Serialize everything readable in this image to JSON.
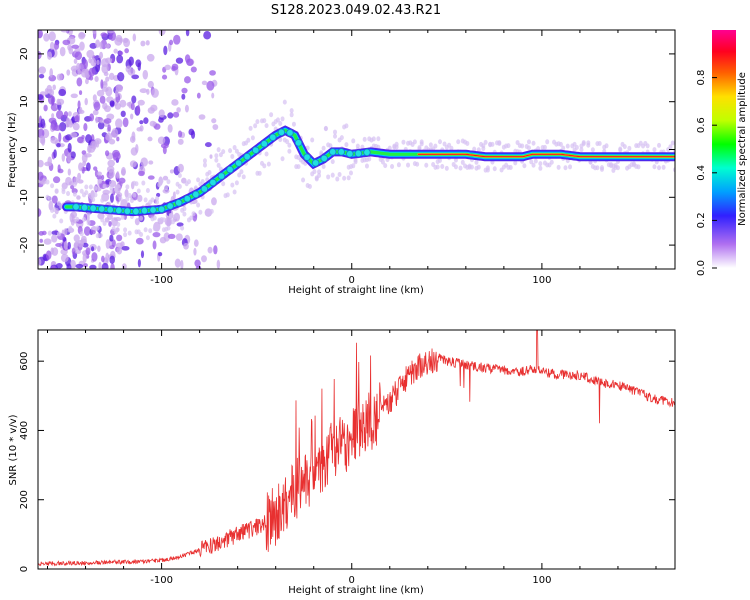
{
  "title": "S128.2023.049.02.43.R21",
  "chart_data": [
    {
      "type": "heatmap",
      "xlabel": "Height of straight line (km)",
      "ylabel": "Frequency (Hz)",
      "xlim": [
        -165,
        170
      ],
      "ylim": [
        -25,
        25
      ],
      "x_ticks": [
        -100,
        0,
        100
      ],
      "y_ticks": [
        -20,
        -10,
        0,
        10,
        20
      ],
      "colorbar": {
        "label": "Normalized spectral amplitude",
        "range": [
          0,
          1
        ],
        "ticks": [
          "0.0",
          "0.2",
          "0.4",
          "0.6",
          "0.8"
        ],
        "colors": [
          "#ffffff",
          "#8a2be2",
          "#0000ff",
          "#00ffff",
          "#00ff00",
          "#ffff00",
          "#ff0000",
          "#ff0090"
        ]
      },
      "ridge": {
        "x": [
          -145,
          -130,
          -115,
          -100,
          -90,
          -80,
          -70,
          -60,
          -50,
          -40,
          -35,
          -30,
          -25,
          -20,
          -15,
          -10,
          -5,
          0,
          10,
          20,
          40,
          60,
          70,
          80,
          90,
          95,
          100,
          110,
          120,
          130,
          150,
          170
        ],
        "y": [
          -12,
          -12.5,
          -13,
          -12.5,
          -11,
          -9,
          -6,
          -3,
          0,
          3,
          4,
          3,
          -1,
          -3,
          -2,
          -0.5,
          -0.5,
          -1,
          -0.5,
          -1,
          -1,
          -1,
          -1.5,
          -1.5,
          -1.5,
          -1,
          -1,
          -1,
          -1.5,
          -1.5,
          -1.5,
          -1.5
        ]
      }
    },
    {
      "type": "line",
      "xlabel": "Height of straight line (km)",
      "ylabel": "SNR (10 * v/v)",
      "xlim": [
        -165,
        170
      ],
      "ylim": [
        0,
        690
      ],
      "x_ticks": [
        -100,
        0,
        100
      ],
      "y_ticks": [
        0,
        200,
        400,
        600
      ],
      "color": "#e83030",
      "envelope": {
        "x": [
          -165,
          -140,
          -120,
          -100,
          -90,
          -80,
          -70,
          -60,
          -50,
          -40,
          -30,
          -20,
          -10,
          0,
          10,
          20,
          30,
          40,
          45,
          50,
          60,
          70,
          80,
          90,
          95,
          100,
          110,
          120,
          130,
          140,
          150,
          160,
          170
        ],
        "y": [
          15,
          18,
          20,
          25,
          35,
          55,
          75,
          100,
          120,
          150,
          230,
          280,
          340,
          380,
          430,
          480,
          560,
          600,
          610,
          600,
          590,
          580,
          575,
          570,
          580,
          570,
          560,
          560,
          540,
          530,
          510,
          490,
          480
        ]
      }
    }
  ]
}
